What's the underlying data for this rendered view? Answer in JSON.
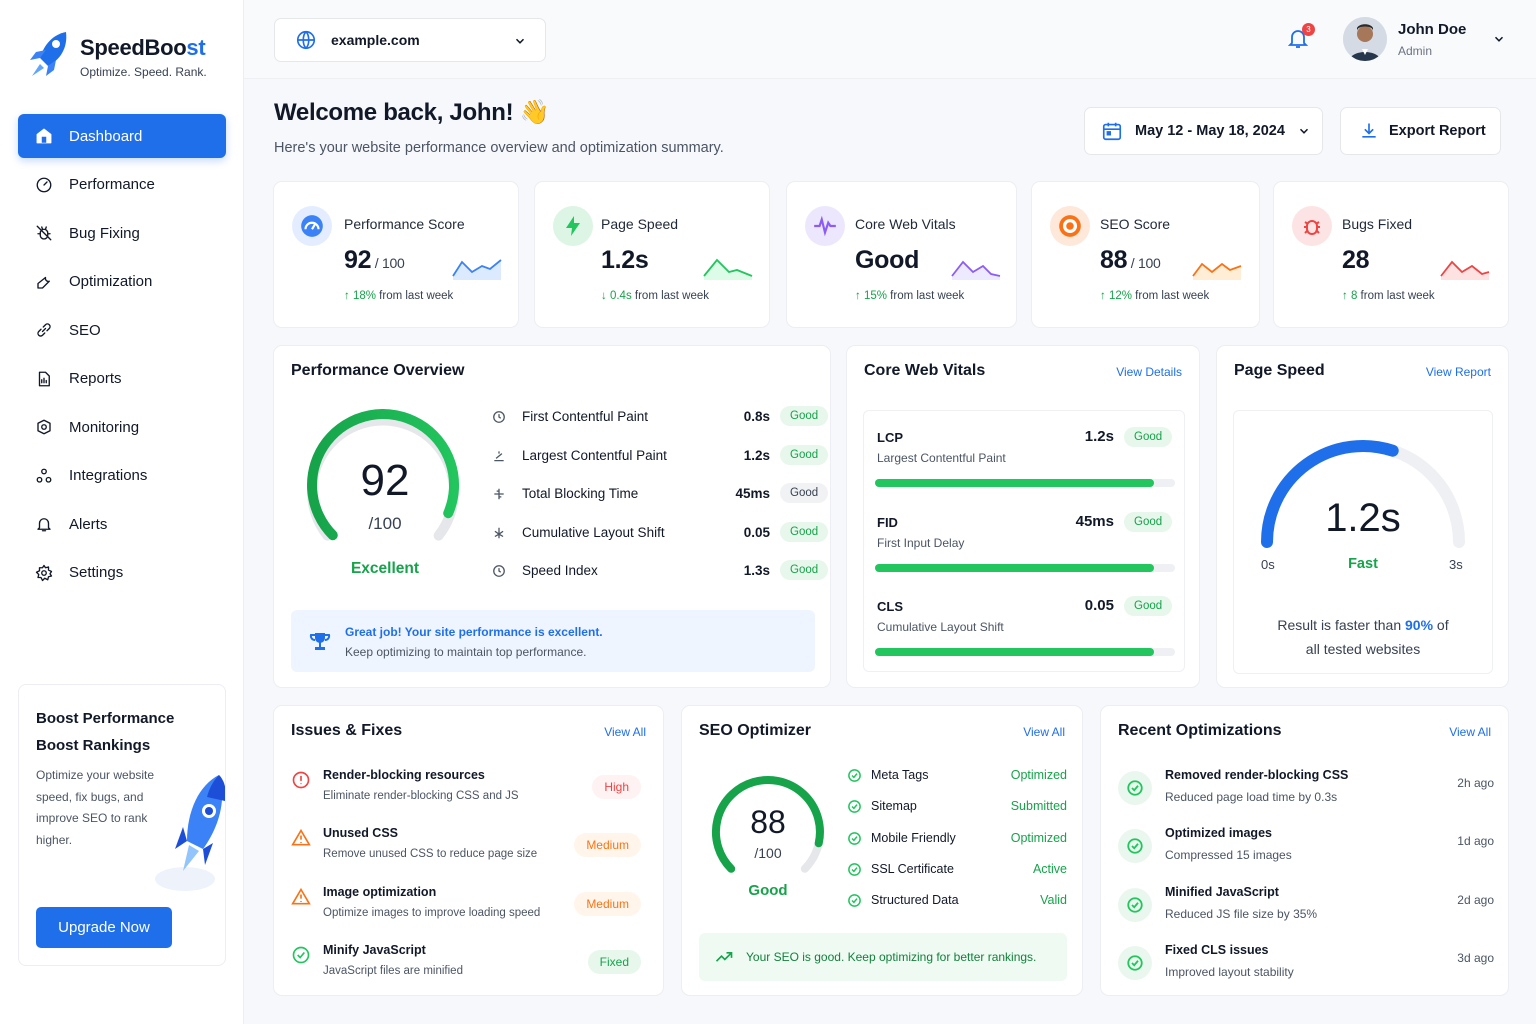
{
  "app": {
    "name_main": "SpeedBoo",
    "name_accent": "st",
    "tagline": "Optimize. Speed. Rank."
  },
  "sidebar": {
    "items": [
      {
        "label": "Dashboard",
        "icon": "home-icon",
        "active": true
      },
      {
        "label": "Performance",
        "icon": "gauge-icon"
      },
      {
        "label": "Bug Fixing",
        "icon": "bug-icon"
      },
      {
        "label": "Optimization",
        "icon": "wrench-icon"
      },
      {
        "label": "SEO",
        "icon": "link-icon"
      },
      {
        "label": "Reports",
        "icon": "report-icon"
      },
      {
        "label": "Monitoring",
        "icon": "monitor-icon"
      },
      {
        "label": "Integrations",
        "icon": "integrations-icon"
      },
      {
        "label": "Alerts",
        "icon": "bell-icon"
      },
      {
        "label": "Settings",
        "icon": "gear-icon"
      }
    ],
    "promo": {
      "title_1": "Boost Performance",
      "title_2": "Boost Rankings",
      "text": "Optimize your website speed, fix bugs, and improve SEO to rank higher.",
      "button": "Upgrade Now"
    }
  },
  "header": {
    "domain": "example.com",
    "notifications": "3",
    "user_name": "John Doe",
    "user_role": "Admin"
  },
  "page": {
    "title": "Welcome back, John!",
    "emoji": "👋",
    "subtitle": "Here's your website performance overview and optimization summary.",
    "date_range": "May 12 - May 18, 2024",
    "export": "Export Report"
  },
  "stats": [
    {
      "label": "Performance Score",
      "value": "92",
      "suffix": " / 100",
      "arrow": "↑",
      "delta_strong": "18%",
      "delta_rest": " from last week",
      "color": "#3b82f6"
    },
    {
      "label": "Page Speed",
      "value": "1.2s",
      "suffix": "",
      "arrow": "↓",
      "delta_strong": "0.4s",
      "delta_rest": " from last week",
      "color": "#22c55e"
    },
    {
      "label": "Core Web Vitals",
      "value": "Good",
      "suffix": "",
      "arrow": "↑",
      "delta_strong": "15%",
      "delta_rest": " from last week",
      "color": "#8b5cf6"
    },
    {
      "label": "SEO Score",
      "value": "88",
      "suffix": " / 100",
      "arrow": "↑",
      "delta_strong": "12%",
      "delta_rest": " from last week",
      "color": "#f97316"
    },
    {
      "label": "Bugs Fixed",
      "value": "28",
      "suffix": "",
      "arrow": "↑",
      "delta_strong": "8",
      "delta_rest": " from last week",
      "color": "#ef4444"
    }
  ],
  "overview": {
    "title": "Performance Overview",
    "score": "92",
    "score_max": "/100",
    "score_fraction": 0.92,
    "score_label": "Excellent",
    "metrics": [
      {
        "name": "First Contentful Paint",
        "value": "0.8s",
        "status": "Good"
      },
      {
        "name": "Largest Contentful Paint",
        "value": "1.2s",
        "status": "Good"
      },
      {
        "name": "Total Blocking Time",
        "value": "45ms",
        "status": "Good"
      },
      {
        "name": "Cumulative Layout Shift",
        "value": "0.05",
        "status": "Good"
      },
      {
        "name": "Speed Index",
        "value": "1.3s",
        "status": "Good"
      }
    ],
    "note_title": "Great job! Your site performance is excellent.",
    "note_text": "Keep optimizing to maintain top performance."
  },
  "cwv": {
    "title": "Core Web Vitals",
    "link": "View Details",
    "rows": [
      {
        "code": "LCP",
        "name": "Largest Contentful Paint",
        "value": "1.2s",
        "status": "Good",
        "fill": 0.93
      },
      {
        "code": "FID",
        "name": "First Input Delay",
        "value": "45ms",
        "status": "Good",
        "fill": 0.93
      },
      {
        "code": "CLS",
        "name": "Cumulative Layout Shift",
        "value": "0.05",
        "status": "Good",
        "fill": 0.93
      }
    ]
  },
  "pagespeed": {
    "title": "Page Speed",
    "link": "View Report",
    "value": "1.2s",
    "label": "Fast",
    "min": "0s",
    "max": "3s",
    "fraction": 0.6,
    "text_1": "Result is faster than ",
    "highlight": "90%",
    "text_2": " of",
    "text_3": "all tested websites"
  },
  "issues": {
    "title": "Issues & Fixes",
    "link": "View All",
    "items": [
      {
        "title": "Render-blocking resources",
        "sub": "Eliminate render-blocking CSS and JS",
        "tag": "High",
        "kind": "error"
      },
      {
        "title": "Unused CSS",
        "sub": "Remove unused CSS to reduce page size",
        "tag": "Medium",
        "kind": "warn"
      },
      {
        "title": "Image optimization",
        "sub": "Optimize images to improve loading speed",
        "tag": "Medium",
        "kind": "warn"
      },
      {
        "title": "Minify JavaScript",
        "sub": "JavaScript files are minified",
        "tag": "Fixed",
        "kind": "ok"
      }
    ]
  },
  "seo": {
    "title": "SEO Optimizer",
    "link": "View All",
    "score": "88",
    "max": "/100",
    "label": "Good",
    "fraction": 0.88,
    "items": [
      {
        "name": "Meta Tags",
        "status": "Optimized"
      },
      {
        "name": "Sitemap",
        "status": "Submitted"
      },
      {
        "name": "Mobile Friendly",
        "status": "Optimized"
      },
      {
        "name": "SSL Certificate",
        "status": "Active"
      },
      {
        "name": "Structured Data",
        "status": "Valid"
      }
    ],
    "note": "Your SEO is good. Keep optimizing for better rankings."
  },
  "recent": {
    "title": "Recent Optimizations",
    "link": "View All",
    "items": [
      {
        "title": "Removed render-blocking CSS",
        "sub": "Reduced page load time by 0.3s",
        "time": "2h ago"
      },
      {
        "title": "Optimized images",
        "sub": "Compressed 15 images",
        "time": "1d ago"
      },
      {
        "title": "Minified JavaScript",
        "sub": "Reduced JS file size by 35%",
        "time": "2d ago"
      },
      {
        "title": "Fixed CLS issues",
        "sub": "Improved layout stability",
        "time": "3d ago"
      }
    ]
  }
}
